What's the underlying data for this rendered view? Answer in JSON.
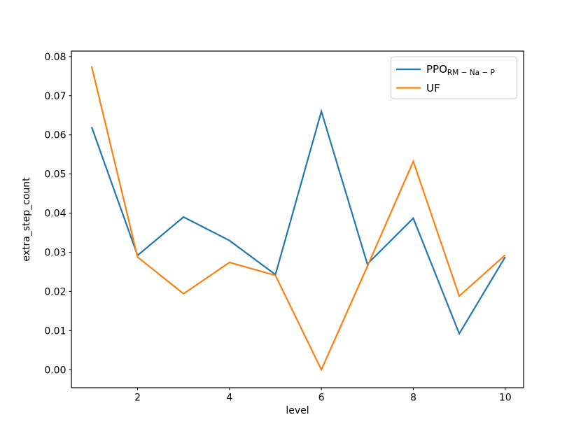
{
  "figure": {
    "background": "#ffffff",
    "spine_color": "#000000",
    "text_color": "#000000"
  },
  "chart_data": {
    "type": "line",
    "title": "",
    "xlabel": "level",
    "ylabel": "extra_step_count",
    "x": [
      1,
      2,
      3,
      4,
      5,
      6,
      7,
      8,
      9,
      10
    ],
    "series": [
      {
        "name": "PPO_RM-Na-P",
        "color": "#1f77b4",
        "linewidth": 2.2,
        "values": [
          0.062,
          0.0292,
          0.039,
          0.033,
          0.0243,
          0.066,
          0.027,
          0.0387,
          0.0092,
          0.0288
        ]
      },
      {
        "name": "UF",
        "color": "#ff7f0e",
        "linewidth": 2.2,
        "values": [
          0.0775,
          0.0288,
          0.0194,
          0.0274,
          0.0241,
          0.0,
          0.0264,
          0.0532,
          0.0188,
          0.0293
        ]
      }
    ],
    "xlim": [
      0.56,
      10.4
    ],
    "ylim": [
      -0.0046,
      0.0814
    ],
    "grid": false,
    "xticks": {
      "values": [
        2,
        4,
        6,
        8,
        10
      ],
      "labels": [
        "2",
        "4",
        "6",
        "8",
        "10"
      ]
    },
    "yticks": {
      "values": [
        0.0,
        0.01,
        0.02,
        0.03,
        0.04,
        0.05,
        0.06,
        0.07,
        0.08
      ],
      "labels": [
        "0.00",
        "0.01",
        "0.02",
        "0.03",
        "0.04",
        "0.05",
        "0.06",
        "0.07",
        "0.08"
      ]
    },
    "legend": {
      "position": "upper right",
      "border_color": "#cccccc",
      "entries": [
        {
          "main": "PPO",
          "sub": "RM − Na − P",
          "color": "#1f77b4"
        },
        {
          "main": "UF",
          "sub": "",
          "color": "#ff7f0e"
        }
      ]
    }
  }
}
